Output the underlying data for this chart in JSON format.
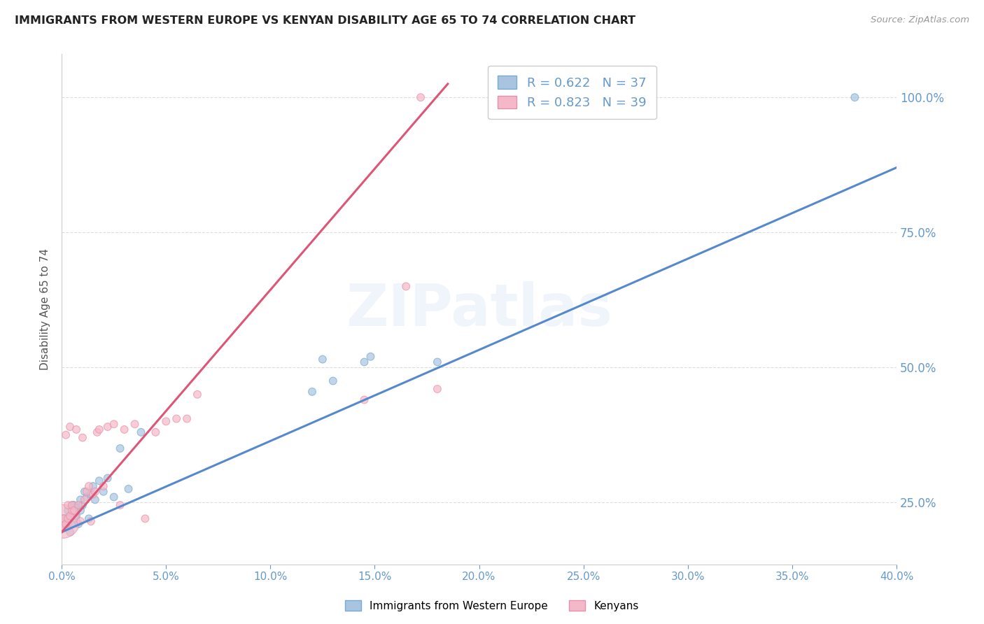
{
  "title": "IMMIGRANTS FROM WESTERN EUROPE VS KENYAN DISABILITY AGE 65 TO 74 CORRELATION CHART",
  "source": "Source: ZipAtlas.com",
  "ylabel": "Disability Age 65 to 74",
  "x_min": 0.0,
  "x_max": 0.4,
  "y_min": 0.135,
  "y_max": 1.08,
  "yticks": [
    0.25,
    0.5,
    0.75,
    1.0
  ],
  "xticks": [
    0.0,
    0.05,
    0.1,
    0.15,
    0.2,
    0.25,
    0.3,
    0.35,
    0.4
  ],
  "legend_blue_r": "0.622",
  "legend_blue_n": "37",
  "legend_pink_r": "0.823",
  "legend_pink_n": "39",
  "legend_blue_label": "Immigrants from Western Europe",
  "legend_pink_label": "Kenyans",
  "blue_color": "#a8c4e0",
  "blue_edge_color": "#7aaace",
  "pink_color": "#f4b8c8",
  "pink_edge_color": "#e890aa",
  "blue_line_color": "#5588cc",
  "pink_line_color": "#dd5577",
  "watermark": "ZIPatlas",
  "title_color": "#222222",
  "axis_tick_color": "#6699cc",
  "right_axis_color": "#6699cc",
  "grid_color": "#dddddd",
  "blue_scatter_x": [
    0.001,
    0.002,
    0.003,
    0.003,
    0.004,
    0.004,
    0.005,
    0.005,
    0.006,
    0.006,
    0.007,
    0.007,
    0.008,
    0.008,
    0.009,
    0.009,
    0.01,
    0.011,
    0.012,
    0.013,
    0.014,
    0.015,
    0.016,
    0.018,
    0.02,
    0.022,
    0.025,
    0.028,
    0.032,
    0.038,
    0.12,
    0.125,
    0.13,
    0.145,
    0.148,
    0.18,
    0.38
  ],
  "blue_scatter_y": [
    0.215,
    0.22,
    0.235,
    0.21,
    0.225,
    0.195,
    0.245,
    0.21,
    0.22,
    0.245,
    0.225,
    0.24,
    0.24,
    0.21,
    0.235,
    0.255,
    0.245,
    0.27,
    0.26,
    0.22,
    0.265,
    0.28,
    0.255,
    0.29,
    0.27,
    0.295,
    0.26,
    0.35,
    0.275,
    0.38,
    0.455,
    0.515,
    0.475,
    0.51,
    0.52,
    0.51,
    1.0
  ],
  "blue_scatter_size": [
    200,
    60,
    60,
    60,
    60,
    60,
    60,
    60,
    60,
    60,
    60,
    60,
    60,
    60,
    60,
    60,
    60,
    60,
    60,
    60,
    60,
    60,
    60,
    60,
    60,
    60,
    60,
    60,
    60,
    60,
    60,
    60,
    60,
    60,
    60,
    60,
    60
  ],
  "pink_scatter_x": [
    0.0005,
    0.001,
    0.002,
    0.002,
    0.003,
    0.003,
    0.004,
    0.004,
    0.005,
    0.005,
    0.006,
    0.007,
    0.008,
    0.009,
    0.01,
    0.011,
    0.012,
    0.013,
    0.014,
    0.015,
    0.016,
    0.017,
    0.018,
    0.02,
    0.022,
    0.025,
    0.028,
    0.03,
    0.035,
    0.04,
    0.045,
    0.05,
    0.055,
    0.06,
    0.065,
    0.145,
    0.165,
    0.172,
    0.18
  ],
  "pink_scatter_y": [
    0.215,
    0.22,
    0.21,
    0.375,
    0.22,
    0.245,
    0.225,
    0.39,
    0.235,
    0.245,
    0.235,
    0.385,
    0.245,
    0.215,
    0.37,
    0.255,
    0.27,
    0.28,
    0.215,
    0.265,
    0.27,
    0.38,
    0.385,
    0.28,
    0.39,
    0.395,
    0.245,
    0.385,
    0.395,
    0.22,
    0.38,
    0.4,
    0.405,
    0.405,
    0.45,
    0.44,
    0.65,
    1.0,
    0.46
  ],
  "pink_scatter_size": [
    1200,
    60,
    60,
    60,
    60,
    60,
    60,
    60,
    60,
    60,
    60,
    60,
    60,
    60,
    60,
    60,
    60,
    60,
    60,
    60,
    60,
    60,
    60,
    60,
    60,
    60,
    60,
    60,
    60,
    60,
    60,
    60,
    60,
    60,
    60,
    60,
    60,
    60,
    60
  ],
  "blue_line_x0": 0.0,
  "blue_line_x1": 0.4,
  "blue_line_y0": 0.195,
  "blue_line_y1": 0.87,
  "pink_line_x0": 0.0,
  "pink_line_x1": 0.185,
  "pink_line_y0": 0.195,
  "pink_line_y1": 1.025
}
